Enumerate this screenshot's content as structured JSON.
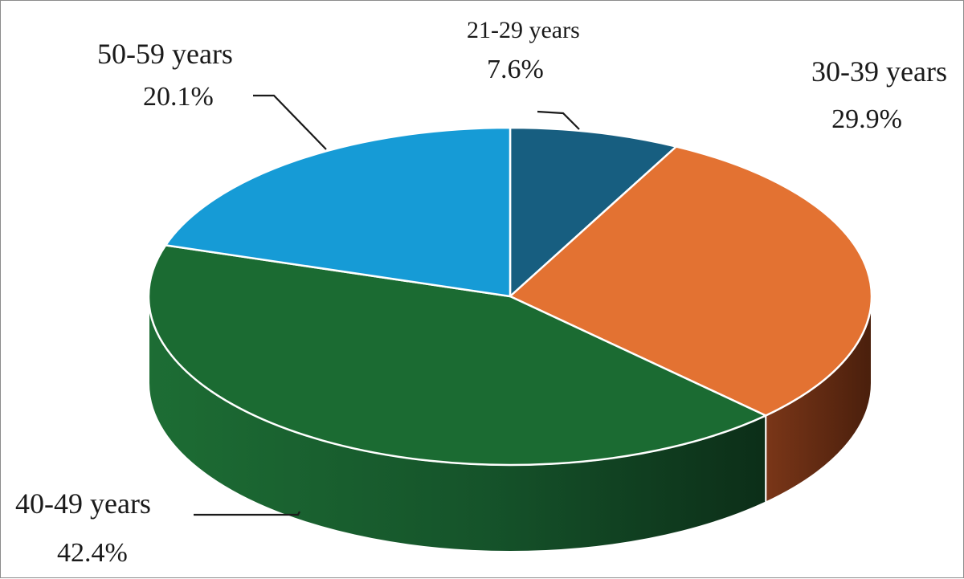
{
  "chart_data": {
    "type": "pie",
    "style": "3d",
    "categories": [
      "21-29 years",
      "30-39 years",
      "40-49 years",
      "50-59 years"
    ],
    "values": [
      7.6,
      29.9,
      42.4,
      20.1
    ],
    "value_labels": [
      "7.6%",
      "29.9%",
      "42.4%",
      "20.1%"
    ],
    "colors": [
      "#175E80",
      "#E37232",
      "#1B6B32",
      "#169BD6"
    ],
    "side_colors": [
      "#0E3A50",
      "#6E3016",
      "#0F4A20",
      "#0D6A93"
    ],
    "title": "",
    "legend": "none",
    "data_labels": "outside-with-leader-lines"
  }
}
